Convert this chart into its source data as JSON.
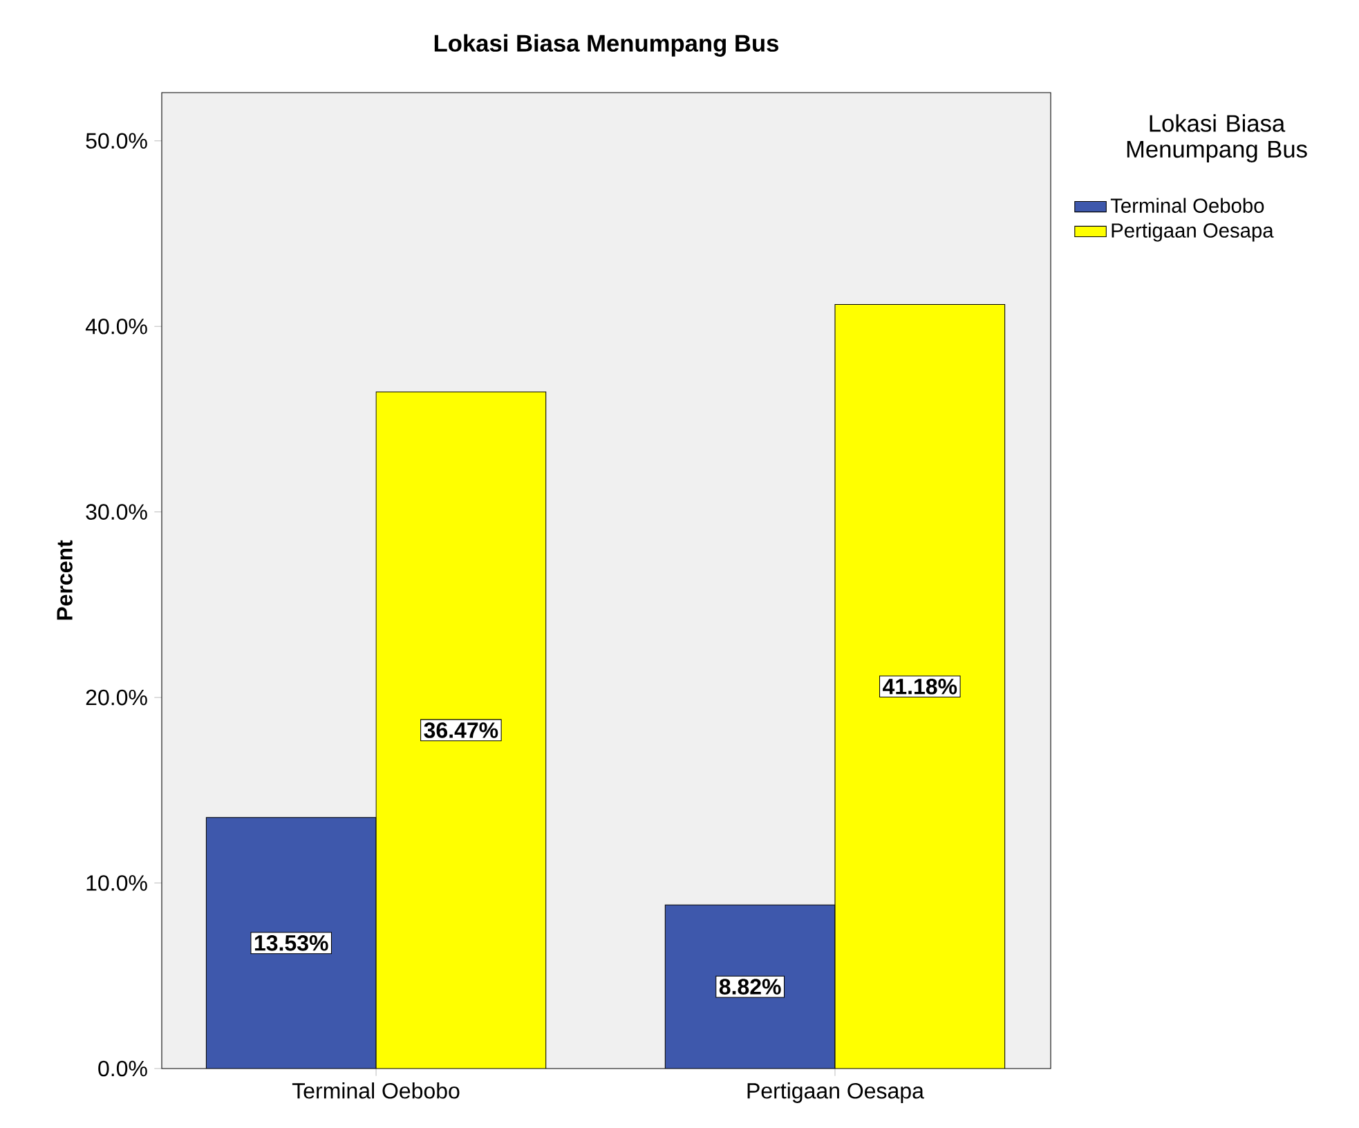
{
  "chart_data": {
    "type": "bar",
    "title": "Lokasi Biasa Menumpang Bus",
    "ylabel": "Percent",
    "legend_title": "Lokasi Biasa Menumpang Bus",
    "categories": [
      "Terminal Oebobo",
      "Pertigaan Oesapa"
    ],
    "series": [
      {
        "name": "Terminal Oebobo",
        "color": "#3e58ac",
        "values": [
          13.53,
          8.82
        ],
        "value_labels": [
          "13.53%",
          "8.82%"
        ]
      },
      {
        "name": "Pertigaan Oesapa",
        "color": "#ffff00",
        "values": [
          36.47,
          41.18
        ],
        "value_labels": [
          "36.47%",
          "41.18%"
        ]
      }
    ],
    "ylim": [
      0,
      52.6
    ],
    "yticks": [
      {
        "value": 0,
        "label": "0.0%"
      },
      {
        "value": 10,
        "label": "10.0%"
      },
      {
        "value": 20,
        "label": "20.0%"
      },
      {
        "value": 30,
        "label": "30.0%"
      },
      {
        "value": 40,
        "label": "40.0%"
      },
      {
        "value": 50,
        "label": "50.0%"
      }
    ],
    "grid": false,
    "legend": "top right"
  }
}
